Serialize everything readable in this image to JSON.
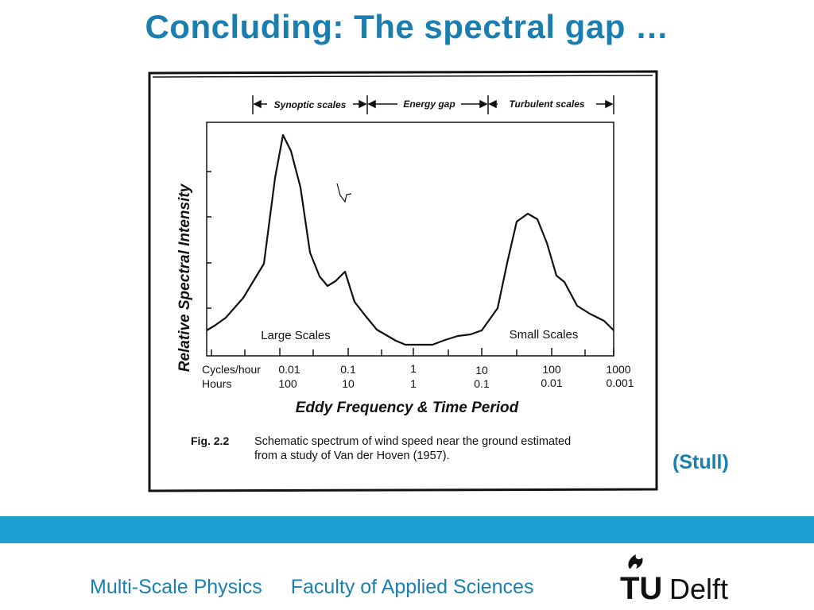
{
  "slide": {
    "title": "Concluding: The spectral gap …",
    "citation": "(Stull)"
  },
  "figure": {
    "bands": {
      "synoptic": "Synoptic scales",
      "gap": "Energy gap",
      "turbulent": "Turbulent scales"
    },
    "ylabel": "Relative Spectral Intensity",
    "xlabel": "Eddy Frequency & Time Period",
    "annotations": {
      "large": "Large Scales",
      "small": "Small Scales"
    },
    "axis_rows": {
      "cycles_label": "Cycles/hour",
      "hours_label": "Hours",
      "cycles": [
        "0.01",
        "0.1",
        "1",
        "10",
        "100",
        "1000"
      ],
      "hours": [
        "100",
        "10",
        "1",
        "0.1",
        "0.01",
        "0.001"
      ]
    },
    "caption": {
      "label": "Fig. 2.2",
      "line1": "Schematic spectrum of wind speed near the ground estimated",
      "line2": "from a study of Van der Hoven (1957)."
    }
  },
  "footer": {
    "group": "Multi-Scale Physics",
    "faculty": "Faculty of Applied Sciences",
    "logo_text_tu": "TU",
    "logo_text_delft": "Delft"
  },
  "colors": {
    "accent": "#1a7fb0",
    "band": "#1a9fd0"
  }
}
